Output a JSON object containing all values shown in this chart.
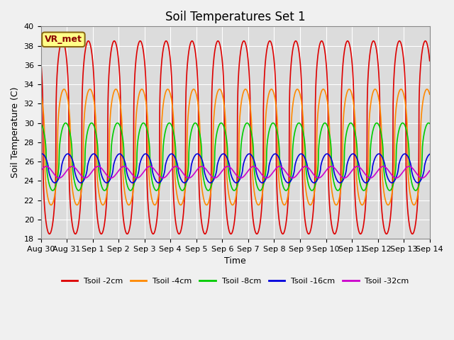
{
  "title": "Soil Temperatures Set 1",
  "xlabel": "Time",
  "ylabel": "Soil Temperature (C)",
  "ylim": [
    18,
    40
  ],
  "yticks": [
    18,
    20,
    22,
    24,
    26,
    28,
    30,
    32,
    34,
    36,
    38,
    40
  ],
  "xtick_labels": [
    "Aug 30",
    "Aug 31",
    "Sep 1",
    "Sep 2",
    "Sep 3",
    "Sep 4",
    "Sep 5",
    "Sep 6",
    "Sep 7",
    "Sep 8",
    "Sep 9",
    "Sep 10",
    "Sep 11",
    "Sep 12",
    "Sep 13",
    "Sep 14"
  ],
  "background_color": "#dcdcdc",
  "fig_bg": "#f0f0f0",
  "series": [
    {
      "label": "Tsoil -2cm",
      "color": "#dd0000",
      "amplitude": 10.0,
      "mean": 28.5,
      "phase_hours": 14.0,
      "sharpness": 3.0
    },
    {
      "label": "Tsoil -4cm",
      "color": "#ff8800",
      "amplitude": 6.0,
      "mean": 27.5,
      "phase_hours": 15.5,
      "sharpness": 2.5
    },
    {
      "label": "Tsoil -8cm",
      "color": "#00cc00",
      "amplitude": 3.5,
      "mean": 26.5,
      "phase_hours": 17.0,
      "sharpness": 2.0
    },
    {
      "label": "Tsoil -16cm",
      "color": "#0000dd",
      "amplitude": 1.5,
      "mean": 25.3,
      "phase_hours": 19.0,
      "sharpness": 1.5
    },
    {
      "label": "Tsoil -32cm",
      "color": "#cc00cc",
      "amplitude": 0.6,
      "mean": 24.9,
      "phase_hours": 23.0,
      "sharpness": 1.0
    }
  ],
  "vr_met_label": "VR_met",
  "grid_color": "#ffffff",
  "title_fontsize": 12,
  "axis_label_fontsize": 9,
  "tick_fontsize": 8,
  "linewidth": 1.2
}
